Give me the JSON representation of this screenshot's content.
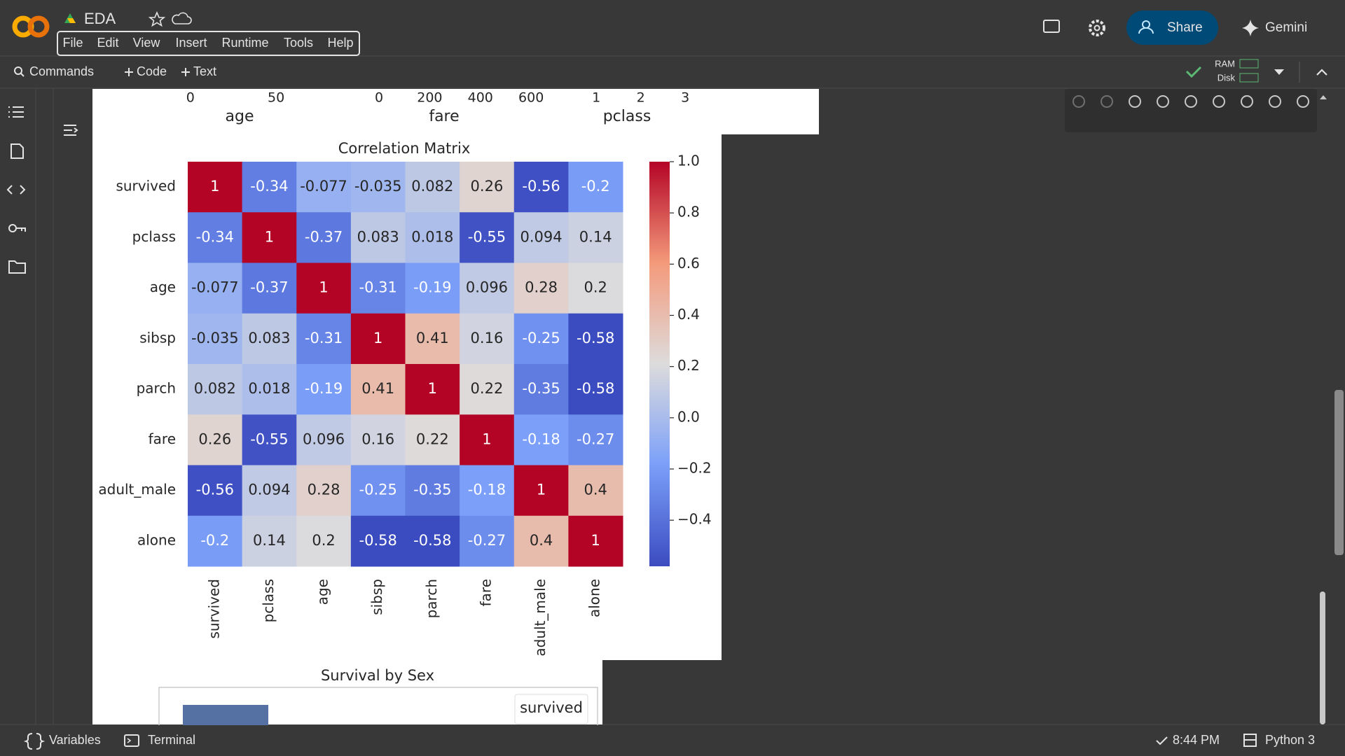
{
  "header": {
    "title": "EDA",
    "menu": [
      "File",
      "Edit",
      "View",
      "Insert",
      "Runtime",
      "Tools",
      "Help"
    ],
    "share": "Share",
    "gemini": "Gemini"
  },
  "toolbar": {
    "commands": "Commands",
    "code": "Code",
    "text": "Text",
    "ram": "RAM",
    "disk": "Disk"
  },
  "previous_plots": [
    {
      "xlabel": "age",
      "xlim": [
        -13,
        81
      ],
      "xticks": [
        0,
        50
      ]
    },
    {
      "xlabel": "fare",
      "xlim": [
        -58,
        688
      ],
      "xticks": [
        0,
        200,
        400,
        600
      ]
    },
    {
      "xlabel": "pclass",
      "xlim": [
        0.51,
        3.5
      ],
      "xticks": [
        1,
        2,
        3
      ]
    }
  ],
  "chart_data": {
    "type": "heatmap",
    "title": "Correlation Matrix",
    "x": [
      "survived",
      "pclass",
      "age",
      "sibsp",
      "parch",
      "fare",
      "adult_male",
      "alone"
    ],
    "y": [
      "survived",
      "pclass",
      "age",
      "sibsp",
      "parch",
      "fare",
      "adult_male",
      "alone"
    ],
    "values": [
      [
        1,
        -0.34,
        -0.077,
        -0.035,
        0.082,
        0.26,
        -0.56,
        -0.2
      ],
      [
        -0.34,
        1,
        -0.37,
        0.083,
        0.018,
        -0.55,
        0.094,
        0.14
      ],
      [
        -0.077,
        -0.37,
        1,
        -0.31,
        -0.19,
        0.096,
        0.28,
        0.2
      ],
      [
        -0.035,
        0.083,
        -0.31,
        1,
        0.41,
        0.16,
        -0.25,
        -0.58
      ],
      [
        0.082,
        0.018,
        -0.19,
        0.41,
        1,
        0.22,
        -0.35,
        -0.58
      ],
      [
        0.26,
        -0.55,
        0.096,
        0.16,
        0.22,
        1,
        -0.18,
        -0.27
      ],
      [
        -0.56,
        0.094,
        0.28,
        -0.25,
        -0.35,
        -0.18,
        1,
        0.4
      ],
      [
        -0.2,
        0.14,
        0.2,
        -0.58,
        -0.58,
        -0.27,
        0.4,
        1
      ]
    ],
    "zlim": [
      -0.58,
      1
    ],
    "colormap": [
      "#3b4cc0",
      "#7b9ff9",
      "#dddcdc",
      "#f49a7b",
      "#b40426"
    ],
    "colorbar_ticks": [
      {
        "value": 1,
        "label": "1.0"
      },
      {
        "value": 0.8,
        "label": "0.8"
      },
      {
        "value": 0.6,
        "label": "0.6"
      },
      {
        "value": 0.4,
        "label": "0.4"
      },
      {
        "value": 0.2,
        "label": "0.2"
      },
      {
        "value": 0,
        "label": "0.0"
      },
      {
        "value": -0.2,
        "label": "−0.2"
      },
      {
        "value": -0.4,
        "label": "−0.4"
      }
    ]
  },
  "next_plot": {
    "title": "Survival by Sex",
    "legend_title": "survived"
  },
  "statusbar": {
    "variables": "Variables",
    "terminal": "Terminal",
    "time": "8:44 PM",
    "kernel": "Python 3"
  }
}
